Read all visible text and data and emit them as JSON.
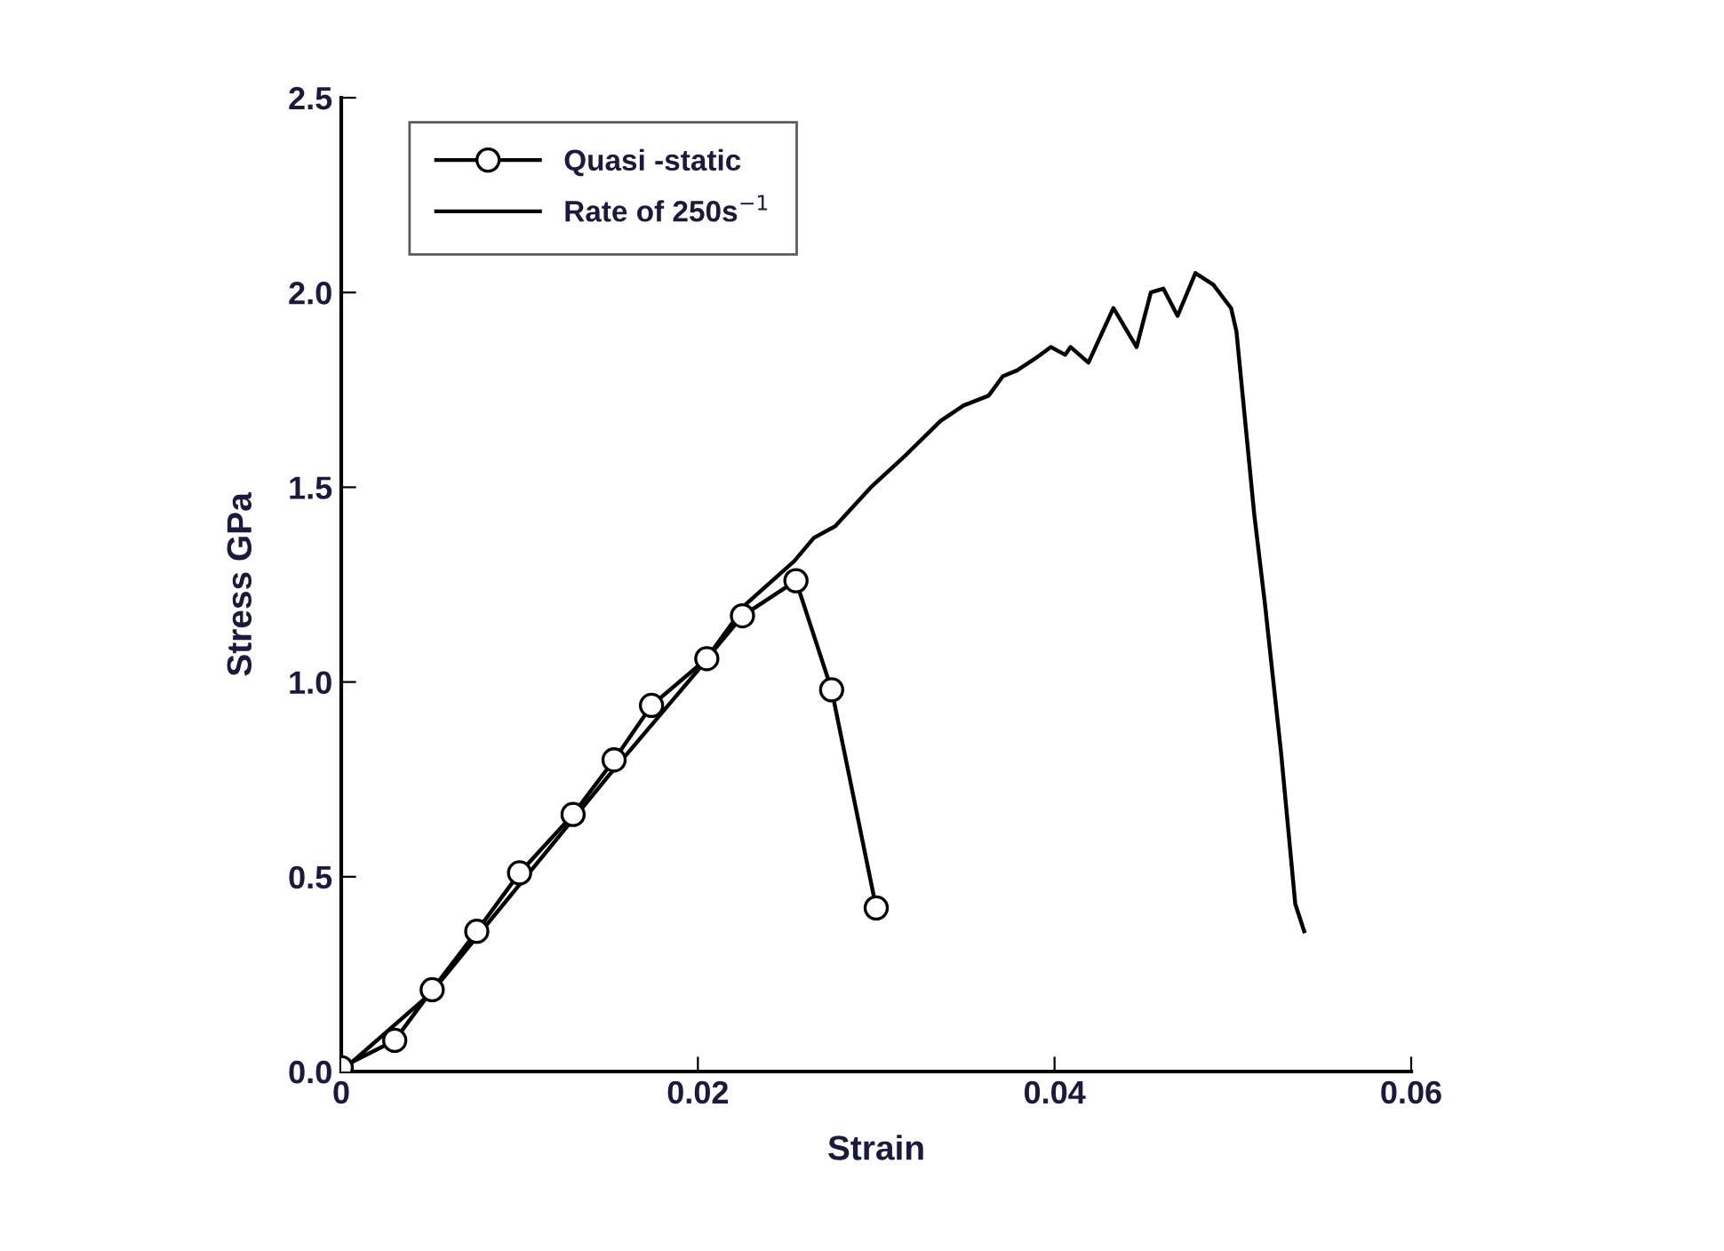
{
  "chart_data": {
    "type": "line",
    "xlabel": "Strain",
    "ylabel": "Stress GPa",
    "xlim": [
      0,
      0.06
    ],
    "ylim": [
      0,
      2.5
    ],
    "xticks": [
      {
        "value": 0,
        "label": "0"
      },
      0.02,
      0.04,
      0.06
    ],
    "yticks": [
      {
        "value": 0,
        "label": "0.0"
      },
      0.5,
      {
        "value": 1,
        "label": "1.0"
      },
      1.5,
      {
        "value": 2,
        "label": "2.0"
      },
      2.5
    ],
    "grid": false,
    "legend": "top left",
    "line_style": "solid",
    "series": [
      {
        "name": "Quasi -static",
        "color": "#000000",
        "marker": "circle",
        "x": [
          0,
          0.003,
          0.0051,
          0.0076,
          0.01,
          0.013,
          0.0153,
          0.0174,
          0.0205,
          0.0225,
          0.0255,
          0.0275,
          0.03
        ],
        "values": [
          0.01,
          0.08,
          0.21,
          0.36,
          0.51,
          0.66,
          0.8,
          0.94,
          1.06,
          1.17,
          1.26,
          0.98,
          0.42
        ]
      },
      {
        "name": "Rate of 250s$^{−1}$",
        "color": "#000000",
        "marker": "none",
        "x": [
          0,
          0.005,
          0.01,
          0.015,
          0.02,
          0.0227,
          0.0254,
          0.0265,
          0.0277,
          0.0297,
          0.0316,
          0.0336,
          0.0349,
          0.0363,
          0.0371,
          0.0379,
          0.0389,
          0.0398,
          0.0406,
          0.0409,
          0.0419,
          0.0433,
          0.0446,
          0.0454,
          0.0461,
          0.0469,
          0.0479,
          0.0489,
          0.0499,
          0.0502,
          0.0512,
          0.0518,
          0.0527,
          0.0535,
          0.054
        ],
        "values": [
          0,
          0.2,
          0.48,
          0.76,
          1.03,
          1.2,
          1.31,
          1.37,
          1.4,
          1.5,
          1.58,
          1.67,
          1.71,
          1.735,
          1.785,
          1.8,
          1.83,
          1.86,
          1.84,
          1.86,
          1.82,
          1.96,
          1.86,
          2.0,
          2.01,
          1.94,
          2.05,
          2.02,
          1.96,
          1.9,
          1.43,
          1.2,
          0.82,
          0.43,
          0.36
        ]
      }
    ]
  }
}
